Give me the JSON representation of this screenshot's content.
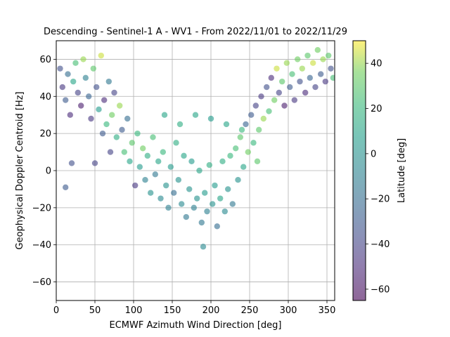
{
  "chart_data": {
    "type": "scatter",
    "title": "Descending - Sentinel-1 A - WV1 - From 2022/11/01 to 2022/11/29",
    "xlabel": "ECMWF Azimuth Wind Direction [deg]",
    "ylabel": "Geophysical Doppler Centroid [Hz]",
    "xlim": [
      0,
      360
    ],
    "ylim": [
      -70,
      70
    ],
    "xticks": [
      0,
      50,
      100,
      150,
      200,
      250,
      300,
      350
    ],
    "yticks": [
      -60,
      -40,
      -20,
      0,
      20,
      40,
      60
    ],
    "grid": true,
    "colorbar": {
      "label": "Latitude [deg]",
      "range": [
        -65,
        50
      ],
      "ticks": [
        -60,
        -40,
        -20,
        0,
        20,
        40
      ],
      "colormap": "viridis"
    },
    "points": [
      [
        5,
        55,
        -35
      ],
      [
        8,
        45,
        -45
      ],
      [
        12,
        38,
        -30
      ],
      [
        15,
        52,
        -20
      ],
      [
        18,
        30,
        -50
      ],
      [
        22,
        48,
        10
      ],
      [
        25,
        58,
        25
      ],
      [
        28,
        42,
        -40
      ],
      [
        32,
        35,
        -55
      ],
      [
        35,
        60,
        40
      ],
      [
        38,
        50,
        -10
      ],
      [
        42,
        40,
        -25
      ],
      [
        45,
        28,
        -45
      ],
      [
        48,
        55,
        30
      ],
      [
        52,
        45,
        -35
      ],
      [
        55,
        33,
        5
      ],
      [
        58,
        62,
        45
      ],
      [
        62,
        38,
        -50
      ],
      [
        65,
        25,
        20
      ],
      [
        68,
        48,
        -15
      ],
      [
        72,
        30,
        35
      ],
      [
        75,
        42,
        -40
      ],
      [
        78,
        18,
        15
      ],
      [
        82,
        35,
        40
      ],
      [
        85,
        22,
        -30
      ],
      [
        88,
        10,
        25
      ],
      [
        92,
        28,
        -20
      ],
      [
        95,
        5,
        10
      ],
      [
        98,
        15,
        30
      ],
      [
        102,
        -8,
        -45
      ],
      [
        105,
        20,
        20
      ],
      [
        108,
        2,
        5
      ],
      [
        112,
        12,
        35
      ],
      [
        115,
        -5,
        -10
      ],
      [
        118,
        8,
        15
      ],
      [
        122,
        -12,
        0
      ],
      [
        125,
        18,
        25
      ],
      [
        128,
        -2,
        -15
      ],
      [
        132,
        5,
        10
      ],
      [
        135,
        -15,
        -5
      ],
      [
        138,
        10,
        20
      ],
      [
        142,
        -8,
        0
      ],
      [
        145,
        -20,
        -10
      ],
      [
        148,
        2,
        5
      ],
      [
        152,
        -12,
        -20
      ],
      [
        155,
        15,
        15
      ],
      [
        158,
        -5,
        0
      ],
      [
        162,
        -18,
        -5
      ],
      [
        165,
        8,
        10
      ],
      [
        168,
        -25,
        -15
      ],
      [
        172,
        -10,
        0
      ],
      [
        175,
        5,
        5
      ],
      [
        178,
        -20,
        -10
      ],
      [
        182,
        -15,
        0
      ],
      [
        185,
        0,
        10
      ],
      [
        188,
        -28,
        -15
      ],
      [
        190,
        -41,
        -5
      ],
      [
        192,
        -12,
        5
      ],
      [
        195,
        -22,
        -10
      ],
      [
        198,
        3,
        15
      ],
      [
        202,
        -18,
        0
      ],
      [
        205,
        -8,
        5
      ],
      [
        208,
        -30,
        -20
      ],
      [
        212,
        -15,
        10
      ],
      [
        215,
        5,
        15
      ],
      [
        218,
        -22,
        -5
      ],
      [
        222,
        -10,
        0
      ],
      [
        225,
        8,
        20
      ],
      [
        228,
        -18,
        -15
      ],
      [
        232,
        12,
        25
      ],
      [
        235,
        -5,
        0
      ],
      [
        238,
        18,
        30
      ],
      [
        242,
        2,
        10
      ],
      [
        245,
        25,
        -25
      ],
      [
        248,
        10,
        35
      ],
      [
        252,
        30,
        -30
      ],
      [
        255,
        15,
        20
      ],
      [
        258,
        35,
        -40
      ],
      [
        262,
        22,
        30
      ],
      [
        265,
        40,
        -45
      ],
      [
        268,
        28,
        40
      ],
      [
        272,
        45,
        -35
      ],
      [
        275,
        32,
        25
      ],
      [
        278,
        50,
        -50
      ],
      [
        282,
        38,
        35
      ],
      [
        285,
        55,
        45
      ],
      [
        288,
        42,
        -40
      ],
      [
        292,
        48,
        30
      ],
      [
        295,
        35,
        -55
      ],
      [
        298,
        58,
        40
      ],
      [
        302,
        45,
        -30
      ],
      [
        305,
        52,
        25
      ],
      [
        308,
        38,
        -45
      ],
      [
        312,
        60,
        35
      ],
      [
        315,
        48,
        -35
      ],
      [
        318,
        55,
        40
      ],
      [
        322,
        42,
        -50
      ],
      [
        325,
        62,
        30
      ],
      [
        328,
        50,
        -25
      ],
      [
        332,
        58,
        45
      ],
      [
        335,
        45,
        -40
      ],
      [
        338,
        65,
        35
      ],
      [
        342,
        52,
        -30
      ],
      [
        345,
        60,
        40
      ],
      [
        348,
        48,
        -45
      ],
      [
        352,
        62,
        30
      ],
      [
        355,
        55,
        -35
      ],
      [
        358,
        50,
        25
      ],
      [
        12,
        -9,
        -30
      ],
      [
        20,
        4,
        -35
      ],
      [
        50,
        4,
        -40
      ],
      [
        60,
        20,
        -30
      ],
      [
        70,
        10,
        -40
      ],
      [
        140,
        30,
        10
      ],
      [
        160,
        25,
        15
      ],
      [
        180,
        30,
        10
      ],
      [
        200,
        28,
        5
      ],
      [
        220,
        25,
        10
      ],
      [
        240,
        22,
        20
      ],
      [
        260,
        5,
        30
      ]
    ]
  }
}
